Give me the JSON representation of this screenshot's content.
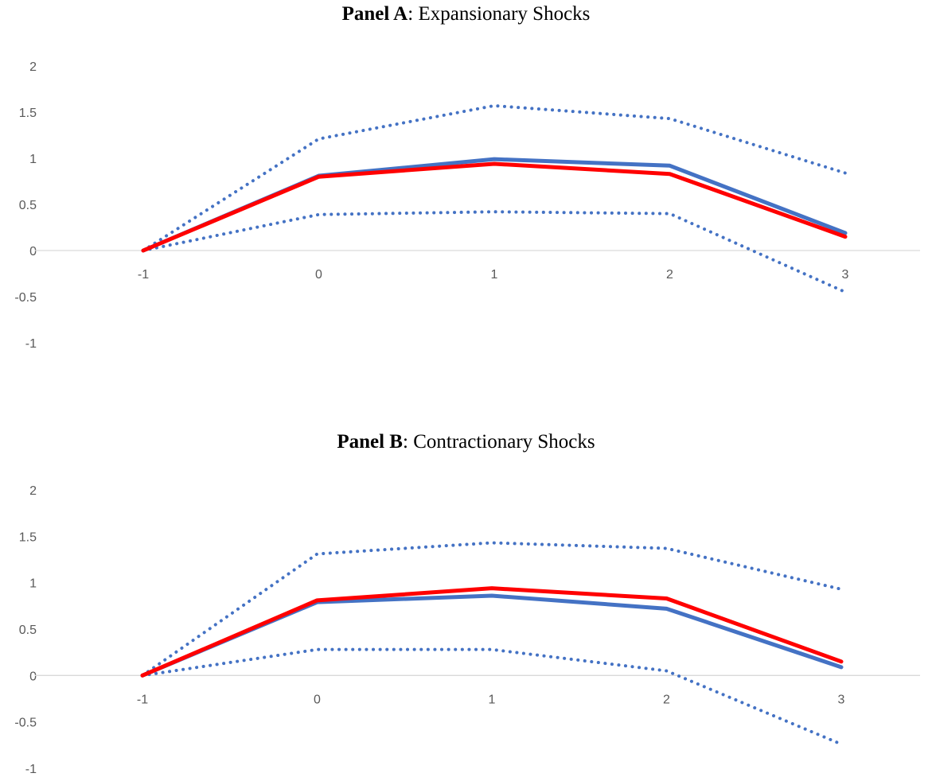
{
  "chart_data": [
    {
      "type": "line",
      "title_bold": "Panel A",
      "title_rest": ": Expansionary Shocks",
      "x": [
        "-1",
        "0",
        "1",
        "2",
        "3"
      ],
      "yticks": [
        "2",
        "1.5",
        "1",
        "0.5",
        "0",
        "-0.5",
        "-1"
      ],
      "ylim": [
        -1,
        2
      ],
      "grid": false,
      "legend": "none",
      "series": [
        {
          "style": "solid",
          "color": "#4472C4",
          "values": [
            0,
            0.81,
            0.99,
            0.92,
            0.19
          ]
        },
        {
          "style": "solid",
          "color": "#FF0000",
          "values": [
            0,
            0.8,
            0.94,
            0.83,
            0.15
          ]
        },
        {
          "style": "dotted",
          "color": "#4472C4",
          "values": [
            0,
            1.21,
            1.57,
            1.43,
            0.84
          ]
        },
        {
          "style": "dotted",
          "color": "#4472C4",
          "values": [
            0,
            0.39,
            0.42,
            0.4,
            -0.45
          ]
        }
      ]
    },
    {
      "type": "line",
      "title_bold": "Panel B",
      "title_rest": ": Contractionary Shocks",
      "x": [
        "-1",
        "0",
        "1",
        "2",
        "3"
      ],
      "yticks": [
        "2",
        "1.5",
        "1",
        "0.5",
        "0",
        "-0.5",
        "-1"
      ],
      "ylim": [
        -1,
        2
      ],
      "grid": false,
      "legend": "none",
      "series": [
        {
          "style": "solid",
          "color": "#4472C4",
          "values": [
            0,
            0.79,
            0.86,
            0.72,
            0.09
          ]
        },
        {
          "style": "solid",
          "color": "#FF0000",
          "values": [
            0,
            0.81,
            0.94,
            0.83,
            0.15
          ]
        },
        {
          "style": "dotted",
          "color": "#4472C4",
          "values": [
            0,
            1.31,
            1.43,
            1.37,
            0.93
          ]
        },
        {
          "style": "dotted",
          "color": "#4472C4",
          "values": [
            0,
            0.28,
            0.28,
            0.05,
            -0.74
          ]
        }
      ]
    }
  ]
}
